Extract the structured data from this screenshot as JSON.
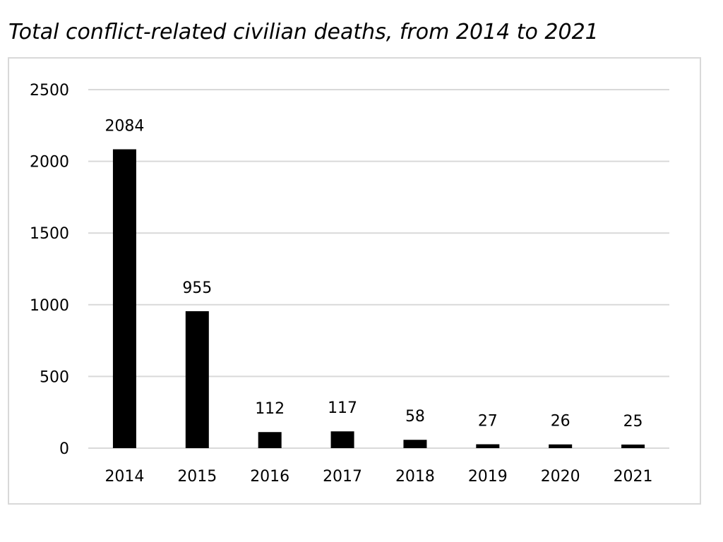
{
  "chart_data": {
    "type": "bar",
    "title": "Total conflict-related civilian deaths, from 2014 to 2021",
    "categories": [
      "2014",
      "2015",
      "2016",
      "2017",
      "2018",
      "2019",
      "2020",
      "2021"
    ],
    "values": [
      2084,
      955,
      112,
      117,
      58,
      27,
      26,
      25
    ],
    "xlabel": "",
    "ylabel": "",
    "ylim": [
      0,
      2500
    ],
    "yticks": [
      0,
      500,
      1000,
      1500,
      2000,
      2500
    ],
    "grid": true,
    "legend": "none",
    "bar_color": "#000000",
    "grid_color": "#d9d9d9",
    "frame_color": "#d9d9d9"
  }
}
